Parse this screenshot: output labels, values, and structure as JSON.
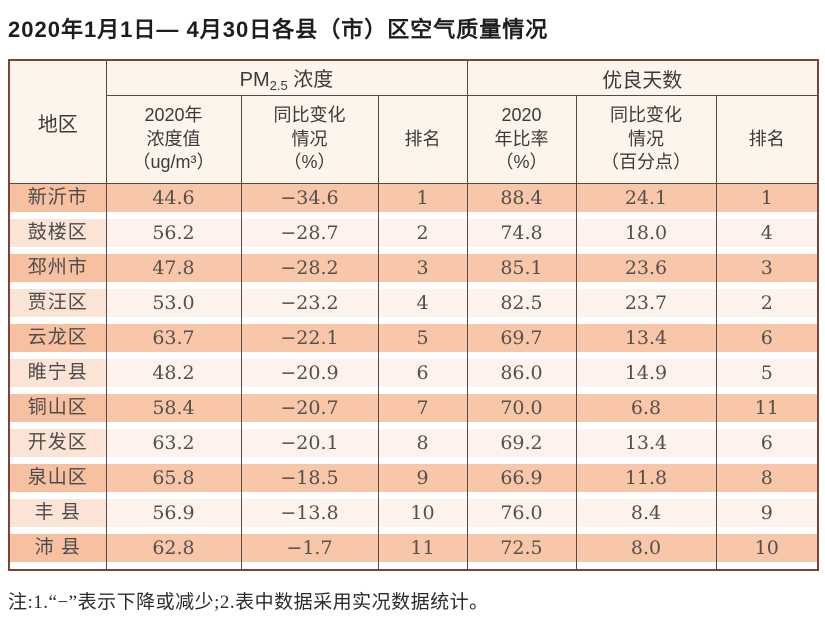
{
  "title": "2020年1月1日— 4月30日各县（市）区空气质量情况",
  "table": {
    "region_header": "地区",
    "group_pm": {
      "base": "PM",
      "sub": "2.5",
      "rest": " 浓度"
    },
    "group_good": "优良天数",
    "sub_headers": {
      "pm_value": "2020年\n浓度值\n（ug/m³）",
      "pm_change": "同比变化\n情况\n（%）",
      "pm_rank": "排名",
      "good_ratio": "2020\n年比率\n（%）",
      "good_change": "同比变化\n情况\n（百分点）",
      "good_rank": "排名"
    },
    "rows": [
      {
        "region": "新沂市",
        "pm_value": "44.6",
        "pm_change": "−34.6",
        "pm_rank": "1",
        "good_ratio": "88.4",
        "good_change": "24.1",
        "good_rank": "1"
      },
      {
        "region": "鼓楼区",
        "pm_value": "56.2",
        "pm_change": "−28.7",
        "pm_rank": "2",
        "good_ratio": "74.8",
        "good_change": "18.0",
        "good_rank": "4"
      },
      {
        "region": "邳州市",
        "pm_value": "47.8",
        "pm_change": "−28.2",
        "pm_rank": "3",
        "good_ratio": "85.1",
        "good_change": "23.6",
        "good_rank": "3"
      },
      {
        "region": "贾汪区",
        "pm_value": "53.0",
        "pm_change": "−23.2",
        "pm_rank": "4",
        "good_ratio": "82.5",
        "good_change": "23.7",
        "good_rank": "2"
      },
      {
        "region": "云龙区",
        "pm_value": "63.7",
        "pm_change": "−22.1",
        "pm_rank": "5",
        "good_ratio": "69.7",
        "good_change": "13.4",
        "good_rank": "6"
      },
      {
        "region": "睢宁县",
        "pm_value": "48.2",
        "pm_change": "−20.9",
        "pm_rank": "6",
        "good_ratio": "86.0",
        "good_change": "14.9",
        "good_rank": "5"
      },
      {
        "region": "铜山区",
        "pm_value": "58.4",
        "pm_change": "−20.7",
        "pm_rank": "7",
        "good_ratio": "70.0",
        "good_change": "6.8",
        "good_rank": "11"
      },
      {
        "region": "开发区",
        "pm_value": "63.2",
        "pm_change": "−20.1",
        "pm_rank": "8",
        "good_ratio": "69.2",
        "good_change": "13.4",
        "good_rank": "6"
      },
      {
        "region": "泉山区",
        "pm_value": "65.8",
        "pm_change": "−18.5",
        "pm_rank": "9",
        "good_ratio": "66.9",
        "good_change": "11.8",
        "good_rank": "8"
      },
      {
        "region": "丰 县",
        "pm_value": "56.9",
        "pm_change": "−13.8",
        "pm_rank": "10",
        "good_ratio": "76.0",
        "good_change": "8.4",
        "good_rank": "9"
      },
      {
        "region": "沛 县",
        "pm_value": "62.8",
        "pm_change": "−1.7",
        "pm_rank": "11",
        "good_ratio": "72.5",
        "good_change": "8.0",
        "good_rank": "10"
      }
    ]
  },
  "note": "注:1.“−”表示下降或减少;2.表中数据采用实况数据统计。",
  "colors": {
    "row_odd_band": "#f8c6a9",
    "row_even_band": "#fdf2ec",
    "region_odd_band": "#f7c0a1",
    "region_even_band": "#fbe3d6",
    "header_bg": "#fdf4ec",
    "outer_border": "#7c4434",
    "inner_border": "#564b44"
  }
}
